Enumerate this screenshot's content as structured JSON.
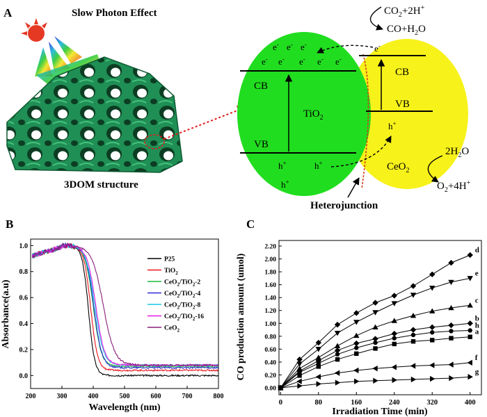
{
  "panelA": {
    "label": "A",
    "slow_photon_title": "Slow Photon Effect",
    "structure_caption": "3DOM structure",
    "heterojunction_label": "Heterojunction",
    "tio2": {
      "name": "TiO",
      "sub": "2",
      "cb": "CB",
      "vb": "VB",
      "electron": "e",
      "electron_sup": "-",
      "hole": "h",
      "hole_sup": "+"
    },
    "ceo2": {
      "name": "CeO",
      "sub": "2",
      "cb": "CB",
      "vb": "VB"
    },
    "reaction_co2": {
      "l1a": "CO",
      "l1s": "2",
      "l1b": "+2H",
      "l1sup": "+",
      "l2": "CO+H",
      "l2s": "2",
      "l2b": "O"
    },
    "reaction_h2o": {
      "l1a": "2H",
      "l1s": "2",
      "l1b": "O",
      "l2a": "O",
      "l2s": "2",
      "l2b": "+4H",
      "l2sup": "+"
    },
    "colors": {
      "green": "#21dd1f",
      "yellow": "#f7f21a",
      "red_dots": "#e01b1b",
      "structure": "#1f8f55"
    }
  },
  "chart_data": [
    {
      "panel": "B",
      "type": "line",
      "xlabel": "Wavelength (nm)",
      "ylabel": "Absorbance(a.u)",
      "xlim": [
        200,
        800
      ],
      "ylim": [
        -0.1,
        1.05
      ],
      "xticks": [
        "200",
        "300",
        "400",
        "500",
        "600",
        "700",
        "800"
      ],
      "yticks": [
        "0.0",
        "0.2",
        "0.4",
        "0.6",
        "0.8",
        "1.0"
      ],
      "legend_position": "right",
      "series": [
        {
          "name": "P25",
          "sub": "",
          "color": "#000000",
          "edge": 385,
          "tail": 0.0,
          "steep": 10
        },
        {
          "name": "TiO",
          "sub": "2",
          "color": "#e8141a",
          "edge": 392,
          "tail": 0.04,
          "steep": 11
        },
        {
          "name": "CeO",
          "sub": "2",
          "suffix": "/TiO",
          "sub2": "2",
          "suffix2": "-2",
          "color": "#1db83c",
          "edge": 400,
          "tail": 0.07,
          "steep": 13
        },
        {
          "name": "CeO",
          "sub": "2",
          "suffix": "/TiO",
          "sub2": "2",
          "suffix2": "-4",
          "color": "#2b2bd6",
          "edge": 402,
          "tail": 0.06,
          "steep": 13
        },
        {
          "name": "CeO",
          "sub": "2",
          "suffix": "/TiO",
          "sub2": "2",
          "suffix2": "-8",
          "color": "#16c8e6",
          "edge": 405,
          "tail": 0.08,
          "steep": 14
        },
        {
          "name": "CeO",
          "sub": "2",
          "suffix": "/TiO",
          "sub2": "2",
          "suffix2": "-16",
          "color": "#e617e6",
          "edge": 408,
          "tail": 0.08,
          "steep": 14
        },
        {
          "name": "CeO",
          "sub": "2",
          "color": "#8a1d7c",
          "edge": 432,
          "tail": 0.08,
          "steep": 18
        }
      ]
    },
    {
      "panel": "C",
      "type": "line",
      "xlabel": "Irradiation Time (min)",
      "ylabel": "CO production amount (umol)",
      "xlim": [
        0,
        400
      ],
      "ylim": [
        0,
        2.2
      ],
      "xticks": [
        "0",
        "80",
        "160",
        "240",
        "320",
        "400"
      ],
      "yticks": [
        "0.00",
        "0.20",
        "0.40",
        "0.60",
        "0.80",
        "1.00",
        "1.20",
        "1.40",
        "1.60",
        "1.80",
        "2.00",
        "2.20"
      ],
      "x": [
        0,
        40,
        80,
        120,
        160,
        200,
        240,
        280,
        320,
        360,
        400
      ],
      "series": [
        {
          "name": "d",
          "marker": "diamond",
          "values": [
            0,
            0.44,
            0.7,
            0.98,
            1.16,
            1.32,
            1.43,
            1.58,
            1.76,
            1.94,
            2.06
          ]
        },
        {
          "name": "e",
          "marker": "tri-down",
          "values": [
            0,
            0.37,
            0.6,
            0.85,
            1.02,
            1.17,
            1.31,
            1.44,
            1.55,
            1.64,
            1.7
          ]
        },
        {
          "name": "c",
          "marker": "tri-up",
          "values": [
            0,
            0.3,
            0.47,
            0.65,
            0.81,
            0.94,
            1.04,
            1.12,
            1.19,
            1.24,
            1.28
          ]
        },
        {
          "name": "b",
          "marker": "diamond",
          "values": [
            0,
            0.26,
            0.42,
            0.58,
            0.69,
            0.76,
            0.84,
            0.9,
            0.94,
            0.97,
            1.0
          ]
        },
        {
          "name": "h",
          "marker": "circle",
          "values": [
            0,
            0.24,
            0.38,
            0.52,
            0.62,
            0.7,
            0.77,
            0.82,
            0.86,
            0.88,
            0.89
          ]
        },
        {
          "name": "a",
          "marker": "square",
          "values": [
            0,
            0.19,
            0.33,
            0.44,
            0.53,
            0.61,
            0.68,
            0.72,
            0.74,
            0.77,
            0.79
          ]
        },
        {
          "name": "f",
          "marker": "tri-left",
          "values": [
            0,
            0.1,
            0.17,
            0.23,
            0.27,
            0.3,
            0.32,
            0.34,
            0.35,
            0.36,
            0.39
          ]
        },
        {
          "name": "g",
          "marker": "tri-right",
          "values": [
            0,
            0.03,
            0.06,
            0.08,
            0.1,
            0.11,
            0.12,
            0.13,
            0.14,
            0.15,
            0.17
          ]
        }
      ]
    }
  ],
  "panel_labels": {
    "B": "B",
    "C": "C"
  }
}
